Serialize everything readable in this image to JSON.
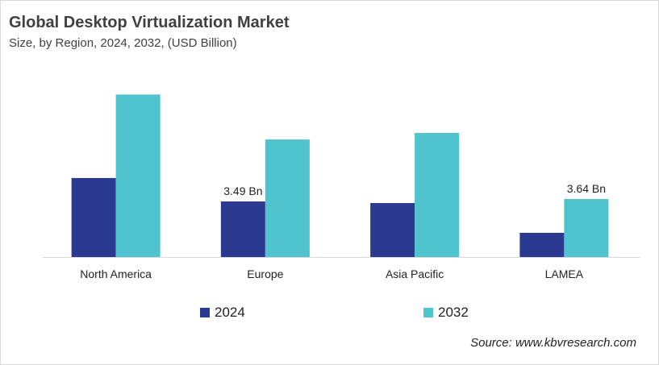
{
  "chart_data": {
    "type": "bar",
    "title": "Global Desktop Virtualization Market",
    "subtitle": "Size, by Region, 2024, 2032, (USD Billion)",
    "categories": [
      "North America",
      "Europe",
      "Asia Pacific",
      "LAMEA"
    ],
    "series": [
      {
        "name": "2024",
        "color": "#2b3990",
        "values": [
          4.96,
          3.49,
          3.39,
          1.52
        ]
      },
      {
        "name": "2032",
        "color": "#4fc3ce",
        "values": [
          10.2,
          7.38,
          7.79,
          3.64
        ]
      }
    ],
    "data_labels": [
      {
        "series": 0,
        "category": 1,
        "text": "3.49 Bn"
      },
      {
        "series": 1,
        "category": 3,
        "text": "3.64 Bn"
      }
    ],
    "ylim": [
      0,
      11
    ],
    "grid": false,
    "legend": "bottom",
    "source": "Source: www.kbvresearch.com"
  }
}
